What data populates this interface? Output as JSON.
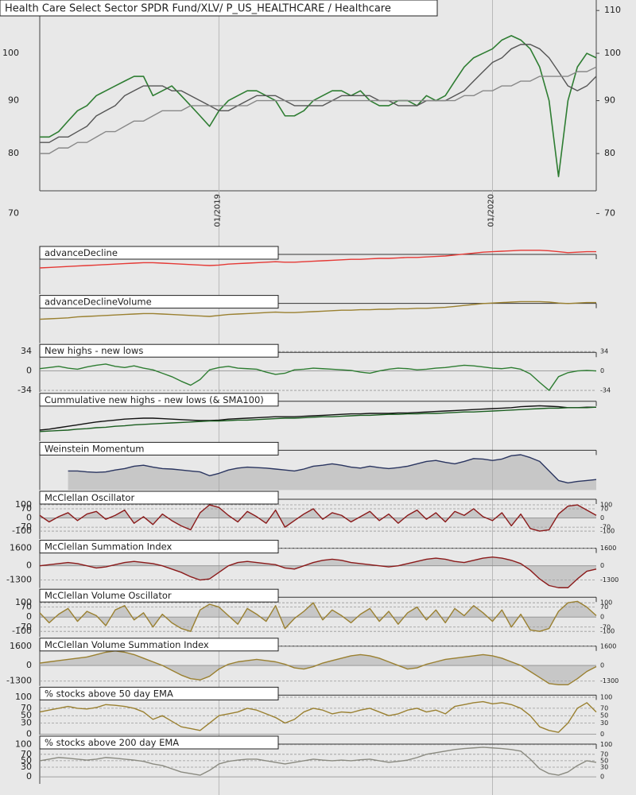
{
  "chart_data": [
    {
      "type": "line",
      "title": "Health Care Select Sector SPDR Fund/XLV/ P_US_HEALTHCARE / Healthcare",
      "log": true,
      "categories": [
        null,
        null,
        null,
        null,
        null,
        null,
        null,
        null,
        null,
        null,
        null,
        null,
        null,
        null,
        null,
        null,
        null,
        null,
        null,
        "01/2019",
        null,
        null,
        null,
        null,
        null,
        null,
        null,
        null,
        null,
        null,
        null,
        null,
        null,
        null,
        null,
        null,
        null,
        null,
        null,
        null,
        null,
        null,
        null,
        null,
        null,
        null,
        null,
        null,
        "01/2020",
        null,
        null,
        null,
        null,
        null,
        null,
        null,
        null,
        null,
        null,
        null
      ],
      "ylim": [
        68.6,
        112.6
      ],
      "yticks": [
        70,
        80,
        90,
        100,
        110
      ],
      "series": [
        {
          "color": "#2e7d32",
          "values": [
            83,
            83,
            84,
            86,
            88,
            89,
            91,
            92,
            93,
            94,
            95,
            95,
            91,
            92,
            93,
            91,
            89,
            87,
            85,
            88,
            90,
            91,
            92,
            92,
            91,
            90,
            87,
            87,
            88,
            90,
            91,
            92,
            92,
            91,
            92,
            90,
            89,
            89,
            90,
            90,
            89,
            91,
            90,
            91,
            94,
            97,
            99,
            100,
            101,
            103,
            104,
            103,
            101,
            97,
            90,
            76,
            90,
            97,
            100,
            99
          ]
        },
        {
          "color": "#555555",
          "values": [
            82,
            82,
            83,
            83,
            84,
            85,
            87,
            88,
            89,
            91,
            92,
            93,
            93,
            93,
            92,
            92,
            91,
            90,
            89,
            88,
            88,
            89,
            90,
            91,
            91,
            91,
            90,
            89,
            89,
            89,
            89,
            90,
            91,
            91,
            91,
            91,
            90,
            90,
            89,
            89,
            89,
            90,
            90,
            90,
            91,
            92,
            94,
            96,
            98,
            99,
            101,
            102,
            102,
            101,
            99,
            96,
            93,
            92,
            93,
            95
          ]
        },
        {
          "color": "#888888",
          "values": [
            80,
            80,
            81,
            81,
            82,
            82,
            83,
            84,
            84,
            85,
            86,
            86,
            87,
            88,
            88,
            88,
            89,
            89,
            89,
            89,
            89,
            89,
            89,
            90,
            90,
            90,
            90,
            90,
            90,
            90,
            90,
            90,
            90,
            90,
            90,
            90,
            90,
            90,
            90,
            90,
            90,
            90,
            90,
            90,
            90,
            91,
            91,
            92,
            92,
            93,
            93,
            94,
            94,
            95,
            95,
            95,
            95,
            96,
            96,
            97
          ]
        }
      ]
    },
    {
      "type": "line",
      "title": "advanceDecline",
      "ylim": [
        0,
        100
      ],
      "yticks": [],
      "series": [
        {
          "color": "#e53935",
          "values": [
            55,
            56,
            57,
            58,
            59,
            60,
            61,
            62,
            63,
            64,
            65,
            66,
            66,
            65,
            64,
            63,
            62,
            61,
            60,
            61,
            63,
            64,
            65,
            66,
            67,
            68,
            67,
            67,
            68,
            69,
            70,
            71,
            72,
            73,
            73,
            74,
            75,
            75,
            76,
            77,
            77,
            78,
            79,
            80,
            82,
            84,
            86,
            88,
            89,
            90,
            91,
            92,
            92,
            92,
            91,
            89,
            87,
            88,
            89,
            89
          ]
        }
      ]
    },
    {
      "type": "line",
      "title": "advanceDeclineVolume",
      "ylim": [
        0,
        100
      ],
      "yticks": [],
      "series": [
        {
          "color": "#9a8030",
          "values": [
            50,
            51,
            52,
            53,
            55,
            56,
            57,
            58,
            59,
            60,
            61,
            62,
            62,
            61,
            60,
            59,
            58,
            57,
            56,
            58,
            60,
            61,
            62,
            63,
            64,
            65,
            64,
            64,
            65,
            66,
            67,
            68,
            69,
            69,
            70,
            70,
            71,
            71,
            72,
            72,
            73,
            73,
            74,
            75,
            77,
            79,
            81,
            83,
            84,
            85,
            86,
            87,
            87,
            87,
            86,
            84,
            83,
            84,
            85,
            85
          ]
        }
      ]
    },
    {
      "type": "line",
      "title": "New highs - new lows",
      "ylim": [
        -37,
        46.5
      ],
      "yticks": [
        -34,
        0,
        34
      ],
      "grid": true,
      "series": [
        {
          "color": "#2e7d32",
          "values": [
            4,
            6,
            8,
            5,
            3,
            7,
            10,
            12,
            8,
            6,
            9,
            5,
            2,
            -4,
            -10,
            -18,
            -25,
            -15,
            2,
            6,
            8,
            5,
            4,
            3,
            -2,
            -6,
            -4,
            2,
            3,
            5,
            4,
            3,
            2,
            1,
            -2,
            -4,
            0,
            3,
            5,
            4,
            2,
            3,
            5,
            6,
            8,
            10,
            9,
            7,
            5,
            4,
            6,
            3,
            -5,
            -20,
            -34,
            -10,
            -3,
            0,
            1,
            0
          ]
        }
      ]
    },
    {
      "type": "line",
      "title": "Cummulative new highs - new lows (& SMA100)",
      "ylim": [
        0,
        100
      ],
      "yticks": [],
      "series": [
        {
          "color": "#111111",
          "values": [
            23,
            25,
            28,
            31,
            34,
            37,
            40,
            42,
            44,
            46,
            47,
            48,
            48,
            47,
            46,
            45,
            44,
            43,
            43,
            44,
            46,
            47,
            48,
            49,
            50,
            51,
            51,
            51,
            52,
            53,
            54,
            55,
            56,
            57,
            57,
            58,
            58,
            58,
            59,
            59,
            60,
            61,
            62,
            63,
            64,
            65,
            66,
            67,
            68,
            69,
            70,
            72,
            73,
            74,
            73,
            72,
            70,
            70,
            71,
            71
          ]
        },
        {
          "color": "#1b5e20",
          "values": [
            20,
            21,
            22,
            23,
            25,
            26,
            28,
            29,
            31,
            32,
            34,
            35,
            36,
            37,
            38,
            39,
            40,
            41,
            42,
            42,
            43,
            44,
            44,
            45,
            46,
            47,
            48,
            48,
            49,
            50,
            51,
            51,
            52,
            53,
            54,
            54,
            55,
            56,
            56,
            57,
            57,
            58,
            58,
            59,
            60,
            61,
            61,
            62,
            63,
            64,
            65,
            66,
            67,
            68,
            69,
            69,
            70,
            70,
            70,
            71
          ]
        }
      ]
    },
    {
      "type": "area",
      "title": "Weinstein Momentum",
      "ylim": [
        0,
        100
      ],
      "yticks": [],
      "series": [
        {
          "color": "#2a3560",
          "values": [
            null,
            null,
            null,
            40,
            40,
            38,
            37,
            38,
            42,
            45,
            50,
            52,
            48,
            45,
            44,
            42,
            40,
            38,
            30,
            35,
            42,
            46,
            48,
            47,
            46,
            44,
            42,
            40,
            44,
            50,
            52,
            55,
            52,
            48,
            46,
            50,
            47,
            45,
            47,
            50,
            55,
            60,
            62,
            58,
            55,
            60,
            66,
            65,
            62,
            65,
            72,
            74,
            68,
            60,
            40,
            20,
            15,
            18,
            20,
            22
          ]
        }
      ]
    },
    {
      "type": "area",
      "title": "McClellan Oscillator",
      "ylim": [
        -160,
        203
      ],
      "yticks": [
        -100,
        -70,
        0,
        70,
        100
      ],
      "grid": true,
      "series": [
        {
          "color": "#8b1a1a",
          "values": [
            20,
            -30,
            10,
            40,
            -20,
            30,
            50,
            -10,
            20,
            60,
            -40,
            10,
            -50,
            30,
            -20,
            -60,
            -90,
            40,
            100,
            80,
            20,
            -30,
            50,
            10,
            -40,
            60,
            -70,
            -20,
            30,
            70,
            -10,
            40,
            20,
            -30,
            10,
            50,
            -20,
            30,
            -40,
            20,
            60,
            -10,
            40,
            -30,
            50,
            20,
            70,
            10,
            -20,
            40,
            -60,
            30,
            -80,
            -100,
            -90,
            30,
            90,
            100,
            60,
            20
          ]
        }
      ]
    },
    {
      "type": "area",
      "title": "McClellan Summation Index",
      "ylim": [
        -2025,
        2325
      ],
      "yticks": [
        -1300,
        0,
        1600
      ],
      "grid": true,
      "series": [
        {
          "color": "#8b1a1a",
          "values": [
            0,
            100,
            200,
            300,
            200,
            0,
            -200,
            -100,
            100,
            300,
            400,
            300,
            200,
            0,
            -300,
            -600,
            -1000,
            -1300,
            -1200,
            -600,
            0,
            300,
            400,
            300,
            200,
            100,
            -200,
            -300,
            0,
            300,
            500,
            600,
            500,
            300,
            200,
            100,
            0,
            -100,
            0,
            200,
            400,
            600,
            700,
            600,
            400,
            300,
            500,
            700,
            800,
            700,
            500,
            200,
            -400,
            -1200,
            -1800,
            -2000,
            -2000,
            -1200,
            -500,
            -300
          ]
        }
      ]
    },
    {
      "type": "area",
      "title": "McClellan Volume Oscillator",
      "ylim": [
        -139,
        194.5
      ],
      "yticks": [
        -100,
        -70,
        0,
        70,
        100
      ],
      "grid": true,
      "series": [
        {
          "color": "#9a8030",
          "values": [
            30,
            -40,
            20,
            60,
            -30,
            40,
            10,
            -60,
            50,
            80,
            -20,
            30,
            -70,
            20,
            -40,
            -80,
            -100,
            50,
            90,
            70,
            10,
            -50,
            60,
            20,
            -30,
            80,
            -80,
            -10,
            40,
            100,
            -20,
            50,
            10,
            -40,
            20,
            60,
            -30,
            40,
            -50,
            30,
            70,
            -20,
            50,
            -40,
            60,
            10,
            80,
            30,
            -30,
            50,
            -70,
            20,
            -90,
            -100,
            -80,
            40,
            100,
            110,
            70,
            10
          ]
        }
      ]
    },
    {
      "type": "area",
      "title": "McClellan Volume Summation Index",
      "ylim": [
        -1700,
        2260
      ],
      "yticks": [
        -1300,
        0,
        1600
      ],
      "grid": true,
      "series": [
        {
          "color": "#9a8030",
          "values": [
            200,
            300,
            400,
            500,
            600,
            700,
            900,
            1100,
            1200,
            1100,
            900,
            600,
            300,
            0,
            -400,
            -800,
            -1100,
            -1200,
            -900,
            -300,
            100,
            300,
            400,
            500,
            400,
            300,
            100,
            -200,
            -300,
            -100,
            200,
            400,
            600,
            800,
            900,
            800,
            600,
            300,
            0,
            -300,
            -200,
            100,
            300,
            500,
            600,
            700,
            800,
            900,
            800,
            600,
            300,
            0,
            -500,
            -1000,
            -1500,
            -1600,
            -1600,
            -1100,
            -500,
            -100
          ]
        }
      ]
    },
    {
      "type": "line",
      "title": "% stocks above 50 day EMA",
      "ylim": [
        -2,
        127
      ],
      "yticks": [
        0,
        30,
        50,
        70,
        100
      ],
      "grid": true,
      "series": [
        {
          "color": "#9a8030",
          "values": [
            60,
            65,
            70,
            75,
            70,
            68,
            72,
            80,
            78,
            75,
            70,
            60,
            40,
            50,
            35,
            20,
            15,
            10,
            30,
            50,
            55,
            60,
            70,
            65,
            55,
            45,
            30,
            40,
            60,
            70,
            65,
            55,
            60,
            58,
            65,
            70,
            60,
            50,
            55,
            65,
            70,
            60,
            65,
            55,
            75,
            80,
            85,
            88,
            82,
            85,
            80,
            70,
            50,
            20,
            10,
            5,
            30,
            70,
            85,
            60
          ]
        }
      ]
    },
    {
      "type": "line",
      "title": "% stocks above 200 day EMA",
      "ylim": [
        -22,
        126.5
      ],
      "yticks": [
        0,
        30,
        50,
        70,
        100
      ],
      "grid": true,
      "series": [
        {
          "color": "#8a8a80",
          "values": [
            50,
            55,
            60,
            58,
            55,
            52,
            55,
            60,
            58,
            55,
            52,
            48,
            40,
            35,
            25,
            15,
            10,
            5,
            20,
            40,
            48,
            52,
            55,
            55,
            50,
            45,
            40,
            45,
            50,
            55,
            52,
            50,
            52,
            50,
            53,
            55,
            50,
            45,
            48,
            52,
            60,
            70,
            75,
            80,
            85,
            88,
            90,
            92,
            90,
            88,
            85,
            80,
            55,
            25,
            10,
            5,
            15,
            35,
            50,
            45
          ]
        }
      ]
    }
  ]
}
